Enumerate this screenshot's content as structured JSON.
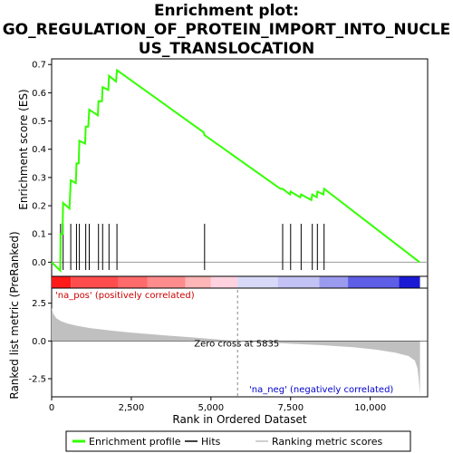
{
  "chart_data": {
    "type": "line",
    "title_lines": [
      "Enrichment plot:",
      "GO_REGULATION_OF_PROTEIN_IMPORT_INTO_NUCLE",
      "US_TRANSLOCATION"
    ],
    "xlabel": "Rank in Ordered Dataset",
    "xlim": [
      0,
      11800
    ],
    "x_ticks": [
      0,
      2500,
      5000,
      7500,
      10000
    ],
    "x_tick_labels": [
      "0",
      "2,500",
      "5,000",
      "7,500",
      "10,000"
    ],
    "es_panel": {
      "ylabel": "Enrichment score (ES)",
      "ylim": [
        -0.05,
        0.72
      ],
      "y_ticks": [
        0.0,
        0.1,
        0.2,
        0.3,
        0.4,
        0.5,
        0.6,
        0.7
      ],
      "y_tick_labels": [
        "0.0",
        "0.1",
        "0.2",
        "0.3",
        "0.4",
        "0.5",
        "0.6",
        "0.7"
      ],
      "series_name": "Enrichment profile",
      "color": "#33ff00",
      "points": [
        [
          0,
          0.0
        ],
        [
          270,
          -0.03
        ],
        [
          280,
          0.1
        ],
        [
          340,
          0.1
        ],
        [
          360,
          0.21
        ],
        [
          560,
          0.19
        ],
        [
          600,
          0.29
        ],
        [
          760,
          0.28
        ],
        [
          780,
          0.35
        ],
        [
          850,
          0.35
        ],
        [
          870,
          0.43
        ],
        [
          1050,
          0.42
        ],
        [
          1070,
          0.48
        ],
        [
          1150,
          0.48
        ],
        [
          1180,
          0.54
        ],
        [
          1450,
          0.52
        ],
        [
          1470,
          0.57
        ],
        [
          1580,
          0.57
        ],
        [
          1600,
          0.62
        ],
        [
          1780,
          0.61
        ],
        [
          1800,
          0.66
        ],
        [
          2020,
          0.64
        ],
        [
          2050,
          0.68
        ],
        [
          4770,
          0.46
        ],
        [
          4800,
          0.45
        ],
        [
          7180,
          0.26
        ],
        [
          7250,
          0.26
        ],
        [
          7480,
          0.24
        ],
        [
          7500,
          0.25
        ],
        [
          7800,
          0.23
        ],
        [
          7830,
          0.24
        ],
        [
          8150,
          0.22
        ],
        [
          8180,
          0.24
        ],
        [
          8320,
          0.23
        ],
        [
          8340,
          0.25
        ],
        [
          8530,
          0.24
        ],
        [
          8550,
          0.26
        ],
        [
          11550,
          0.0
        ]
      ]
    },
    "hits": {
      "name": "Hits",
      "ranks": [
        280,
        360,
        600,
        780,
        870,
        1070,
        1180,
        1470,
        1600,
        1800,
        2050,
        4800,
        7250,
        7500,
        7830,
        8180,
        8340,
        8550
      ]
    },
    "ranked_panel": {
      "ylabel": "Ranked list metric (PreRanked)",
      "ylim": [
        -3.7,
        3.5
      ],
      "y_ticks": [
        -2.5,
        0.0,
        2.5
      ],
      "y_tick_labels": [
        "-2.5",
        "0.0",
        "2.5"
      ],
      "series_name": "Ranking metric scores",
      "fill_color": "#c0c0c0",
      "curve": [
        [
          0,
          2.2
        ],
        [
          50,
          1.8
        ],
        [
          150,
          1.5
        ],
        [
          300,
          1.3
        ],
        [
          500,
          1.15
        ],
        [
          800,
          1.0
        ],
        [
          1200,
          0.85
        ],
        [
          1800,
          0.7
        ],
        [
          2500,
          0.55
        ],
        [
          3500,
          0.38
        ],
        [
          4500,
          0.22
        ],
        [
          5200,
          0.1
        ],
        [
          5835,
          0.0
        ],
        [
          6500,
          -0.08
        ],
        [
          7500,
          -0.18
        ],
        [
          8500,
          -0.28
        ],
        [
          9500,
          -0.42
        ],
        [
          10200,
          -0.58
        ],
        [
          10800,
          -0.78
        ],
        [
          11200,
          -1.0
        ],
        [
          11400,
          -1.3
        ],
        [
          11480,
          -1.8
        ],
        [
          11520,
          -2.5
        ],
        [
          11560,
          -3.6
        ]
      ],
      "zero_cross_rank": 5835,
      "zero_cross_label": "Zero cross at 5835",
      "pos_label": "'na_pos' (positively correlated)",
      "neg_label": "'na_neg' (negatively correlated)",
      "pos_label_color": "#cc0000",
      "neg_label_color": "#0000cc"
    },
    "color_bar": {
      "max_rank": 11560,
      "segments": [
        {
          "start": 0,
          "end": 600,
          "color": "#ff1a1a"
        },
        {
          "start": 600,
          "end": 2100,
          "color": "#ff4d4d"
        },
        {
          "start": 2100,
          "end": 3000,
          "color": "#ff6a6a"
        },
        {
          "start": 3000,
          "end": 4200,
          "color": "#ff8c8c"
        },
        {
          "start": 4200,
          "end": 5000,
          "color": "#ffb6b6"
        },
        {
          "start": 5000,
          "end": 5835,
          "color": "#ffd2e0"
        },
        {
          "start": 5835,
          "end": 7100,
          "color": "#d8d8f8"
        },
        {
          "start": 7100,
          "end": 8400,
          "color": "#c2c2f4"
        },
        {
          "start": 8400,
          "end": 9300,
          "color": "#9a9aee"
        },
        {
          "start": 9300,
          "end": 10900,
          "color": "#5e5ee6"
        },
        {
          "start": 10900,
          "end": 11560,
          "color": "#1a1ad4"
        }
      ]
    },
    "legend": {
      "position": "bottom",
      "entries": [
        {
          "label": "Enrichment profile",
          "color": "#33ff00",
          "kind": "line"
        },
        {
          "label": "Hits",
          "color": "#000000",
          "kind": "line"
        },
        {
          "label": "Ranking metric scores",
          "color": "#c0c0c0",
          "kind": "line"
        }
      ]
    }
  }
}
